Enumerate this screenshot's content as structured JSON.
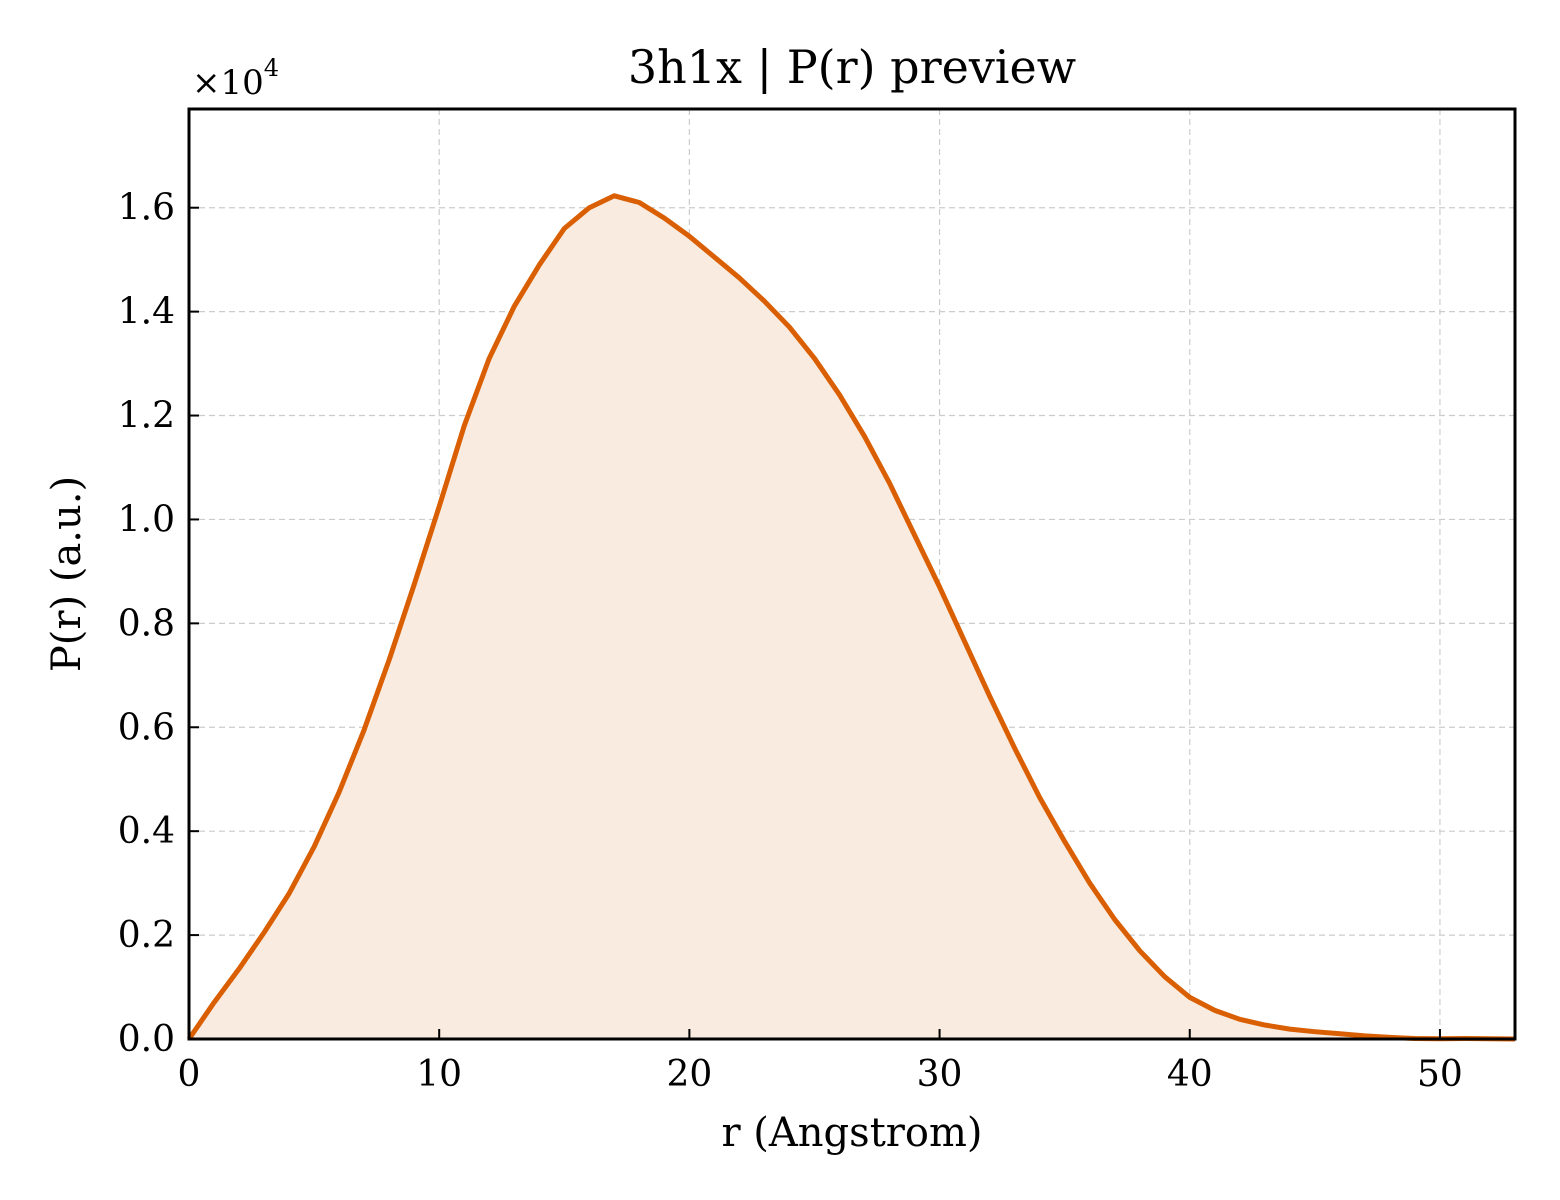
{
  "chart_data": {
    "type": "area",
    "title": "3h1x | P(r) preview",
    "xlabel": "r (Angstrom)",
    "ylabel": "P(r) (a.u.)",
    "y_offset_label": "×10",
    "y_offset_exponent": "4",
    "xlim": [
      0,
      53
    ],
    "ylim": [
      0,
      17900
    ],
    "grid": true,
    "legend": "none",
    "x_ticks": [
      {
        "value": 0,
        "label": "0"
      },
      {
        "value": 10,
        "label": "10"
      },
      {
        "value": 20,
        "label": "20"
      },
      {
        "value": 30,
        "label": "30"
      },
      {
        "value": 40,
        "label": "40"
      },
      {
        "value": 50,
        "label": "50"
      }
    ],
    "y_ticks": [
      {
        "value": 0,
        "label": "0.0"
      },
      {
        "value": 2000,
        "label": "0.2"
      },
      {
        "value": 4000,
        "label": "0.4"
      },
      {
        "value": 6000,
        "label": "0.6"
      },
      {
        "value": 8000,
        "label": "0.8"
      },
      {
        "value": 10000,
        "label": "1.0"
      },
      {
        "value": 12000,
        "label": "1.2"
      },
      {
        "value": 14000,
        "label": "1.4"
      },
      {
        "value": 16000,
        "label": "1.6"
      }
    ],
    "series": [
      {
        "color": "#d95f02",
        "fill_color": "#f9ebe0",
        "x": [
          0,
          1,
          2,
          3,
          4,
          5,
          6,
          7,
          8,
          9,
          10,
          11,
          12,
          13,
          14,
          15,
          16,
          17,
          18,
          19,
          20,
          21,
          22,
          23,
          24,
          25,
          26,
          27,
          28,
          29,
          30,
          31,
          32,
          33,
          34,
          35,
          36,
          37,
          38,
          39,
          40,
          41,
          42,
          43,
          44,
          45,
          46,
          47,
          48,
          49,
          50,
          51,
          52,
          53
        ],
        "y": [
          0,
          700,
          1350,
          2050,
          2800,
          3700,
          4750,
          5950,
          7300,
          8750,
          10250,
          11800,
          13100,
          14100,
          14900,
          15600,
          16000,
          16230,
          16100,
          15800,
          15450,
          15050,
          14650,
          14200,
          13700,
          13100,
          12400,
          11600,
          10700,
          9700,
          8700,
          7650,
          6600,
          5600,
          4650,
          3800,
          3000,
          2300,
          1700,
          1200,
          800,
          550,
          380,
          270,
          190,
          140,
          100,
          60,
          30,
          10,
          5,
          10,
          5,
          0
        ]
      }
    ]
  }
}
